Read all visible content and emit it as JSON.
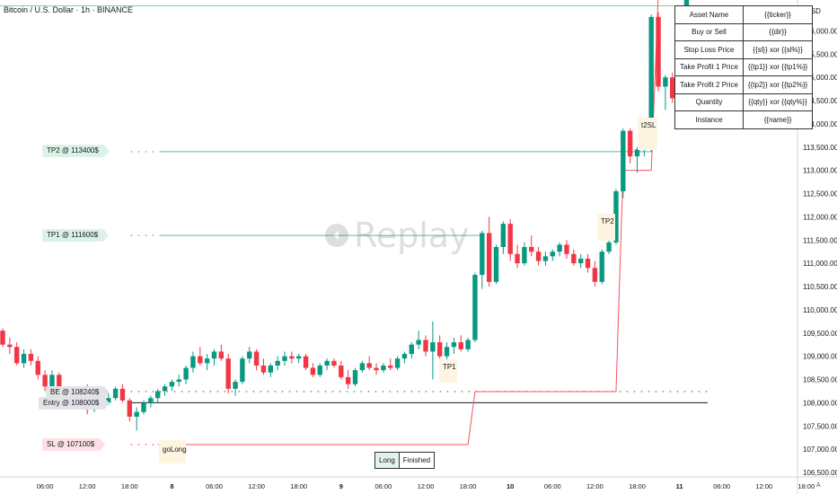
{
  "header": {
    "title": "Bitcoin / U.S. Dollar · 1h · BINANCE",
    "currency": "USD",
    "scale_mode": "A"
  },
  "watermark": {
    "text": "Replay",
    "icon": "replay-icon"
  },
  "labels": {
    "tp2": "TP2 @ 113400$",
    "tp1": "TP1 @ 111600$",
    "be": "BE @ 108240$",
    "entry": "Entry @ 108000$",
    "sl": "SL @ 107100$"
  },
  "markers": {
    "golong": "goLong",
    "tp1": "TP1",
    "tp2": "TP2",
    "tsl": "t2SL"
  },
  "info_table": [
    {
      "key": "Asset Name",
      "value": "{{ticker}}"
    },
    {
      "key": "Buy or Sell",
      "value": "{{dir}}"
    },
    {
      "key": "Stop Loss Price",
      "value": "{{sl}} xor {{sl%}}"
    },
    {
      "key": "Take Profit 1 Price",
      "value": "{{tp1}} xor {{tp1%}}"
    },
    {
      "key": "Take Profit 2 Price",
      "value": "{{tp2}} xor {{tp2%}}"
    },
    {
      "key": "Quantity",
      "value": "{{qty}} xor {{qty%}}"
    },
    {
      "key": "Instance",
      "value": "{{name}}"
    }
  ],
  "status": {
    "side": "Long",
    "state": "Finished"
  },
  "colors": {
    "up": "#089981",
    "down": "#f23645",
    "tp_line": "#4fc298",
    "sl_line": "#f7525f",
    "stop_trail": "#f7525f"
  },
  "chart_data": {
    "type": "candlestick",
    "title": "Bitcoin / U.S. Dollar · 1h · BINANCE",
    "ylim": [
      106500,
      116500
    ],
    "y_ticks": [
      "106,500.00",
      "107,000.00",
      "107,500.00",
      "108,000.00",
      "108,500.00",
      "109,000.00",
      "109,500.00",
      "110,000.00",
      "110,500.00",
      "111,000.00",
      "111,500.00",
      "112,000.00",
      "112,500.00",
      "113,000.00",
      "113,500.00",
      "114,000.00",
      "114,500.00",
      "115,000.00",
      "115,500.00",
      "116,000.00"
    ],
    "x_ticks": [
      {
        "t": 6,
        "label": "06:00",
        "bold": false
      },
      {
        "t": 12,
        "label": "12:00",
        "bold": false
      },
      {
        "t": 18,
        "label": "18:00",
        "bold": false
      },
      {
        "t": 24,
        "label": "8",
        "bold": true
      },
      {
        "t": 30,
        "label": "06:00",
        "bold": false
      },
      {
        "t": 36,
        "label": "12:00",
        "bold": false
      },
      {
        "t": 42,
        "label": "18:00",
        "bold": false
      },
      {
        "t": 48,
        "label": "9",
        "bold": true
      },
      {
        "t": 54,
        "label": "06:00",
        "bold": false
      },
      {
        "t": 60,
        "label": "12:00",
        "bold": false
      },
      {
        "t": 66,
        "label": "18:00",
        "bold": false
      },
      {
        "t": 72,
        "label": "10",
        "bold": true
      },
      {
        "t": 78,
        "label": "06:00",
        "bold": false
      },
      {
        "t": 84,
        "label": "12:00",
        "bold": false
      },
      {
        "t": 90,
        "label": "18:00",
        "bold": false
      },
      {
        "t": 96,
        "label": "11",
        "bold": true
      },
      {
        "t": 102,
        "label": "06:00",
        "bold": false
      },
      {
        "t": 108,
        "label": "12:00",
        "bold": false
      },
      {
        "t": 114,
        "label": "18:00",
        "bold": false
      }
    ],
    "candles": [
      [
        0,
        109550,
        109600,
        109200,
        109250
      ],
      [
        1,
        109250,
        109400,
        109050,
        109200
      ],
      [
        2,
        109200,
        109300,
        108800,
        108850
      ],
      [
        3,
        108850,
        109150,
        108750,
        109050
      ],
      [
        4,
        109050,
        109150,
        108800,
        108900
      ],
      [
        5,
        108900,
        109000,
        108500,
        108600
      ],
      [
        6,
        108600,
        108700,
        108250,
        108350
      ],
      [
        7,
        108350,
        108700,
        108250,
        108600
      ],
      [
        8,
        108600,
        108650,
        108100,
        108200
      ],
      [
        9,
        108200,
        108300,
        107950,
        108050
      ],
      [
        10,
        108050,
        108250,
        107900,
        108150
      ],
      [
        11,
        108150,
        108300,
        108000,
        108200
      ],
      [
        12,
        108200,
        108400,
        107750,
        107850
      ],
      [
        13,
        107850,
        108200,
        107800,
        108150
      ],
      [
        14,
        108150,
        108300,
        107900,
        108000
      ],
      [
        15,
        108000,
        108200,
        107950,
        108100
      ],
      [
        16,
        108100,
        108350,
        108050,
        108300
      ],
      [
        17,
        108300,
        108400,
        108000,
        108050
      ],
      [
        18,
        108050,
        108100,
        107600,
        107700
      ],
      [
        19,
        107700,
        107900,
        107400,
        107800
      ],
      [
        20,
        107800,
        108050,
        107750,
        108000
      ],
      [
        21,
        108000,
        108150,
        107900,
        108100
      ],
      [
        22,
        108100,
        108300,
        108000,
        108250
      ],
      [
        23,
        108250,
        108400,
        108150,
        108350
      ],
      [
        24,
        108350,
        108500,
        108250,
        108450
      ],
      [
        25,
        108450,
        108600,
        108350,
        108500
      ],
      [
        26,
        108500,
        108800,
        108400,
        108750
      ],
      [
        27,
        108750,
        109100,
        108650,
        109000
      ],
      [
        28,
        109000,
        109200,
        108800,
        108850
      ],
      [
        29,
        108850,
        109050,
        108700,
        108950
      ],
      [
        30,
        108950,
        109150,
        108800,
        109100
      ],
      [
        31,
        109100,
        109250,
        108900,
        108950
      ],
      [
        32,
        108950,
        109050,
        108200,
        108300
      ],
      [
        33,
        108300,
        108500,
        108150,
        108450
      ],
      [
        34,
        108450,
        109000,
        108400,
        108950
      ],
      [
        35,
        108950,
        109200,
        108850,
        109100
      ],
      [
        36,
        109100,
        109150,
        108700,
        108800
      ],
      [
        37,
        108800,
        108950,
        108600,
        108650
      ],
      [
        38,
        108650,
        108850,
        108550,
        108800
      ],
      [
        39,
        108800,
        109000,
        108700,
        108900
      ],
      [
        40,
        108900,
        109100,
        108800,
        109000
      ],
      [
        41,
        109000,
        109100,
        108850,
        108950
      ],
      [
        42,
        108950,
        109050,
        108850,
        109000
      ],
      [
        43,
        109000,
        109050,
        108700,
        108750
      ],
      [
        44,
        108750,
        108850,
        108550,
        108600
      ],
      [
        45,
        108600,
        108850,
        108550,
        108800
      ],
      [
        46,
        108800,
        108950,
        108700,
        108900
      ],
      [
        47,
        108900,
        108950,
        108750,
        108800
      ],
      [
        48,
        108800,
        108900,
        108500,
        108550
      ],
      [
        49,
        108550,
        108700,
        108300,
        108400
      ],
      [
        50,
        108400,
        108750,
        108350,
        108700
      ],
      [
        51,
        108700,
        108900,
        108650,
        108850
      ],
      [
        52,
        108850,
        109000,
        108700,
        108750
      ],
      [
        53,
        108750,
        108850,
        108600,
        108700
      ],
      [
        54,
        108700,
        108850,
        108650,
        108800
      ],
      [
        55,
        108800,
        108950,
        108700,
        108750
      ],
      [
        56,
        108750,
        109000,
        108700,
        108950
      ],
      [
        57,
        108950,
        109100,
        108850,
        109050
      ],
      [
        58,
        109050,
        109300,
        108950,
        109250
      ],
      [
        59,
        109250,
        109550,
        109150,
        109350
      ],
      [
        60,
        109350,
        109450,
        109000,
        109100
      ],
      [
        61,
        109100,
        109750,
        108500,
        109300
      ],
      [
        62,
        109300,
        109450,
        108950,
        109000
      ],
      [
        63,
        109000,
        109300,
        108900,
        109200
      ],
      [
        64,
        109200,
        109400,
        109050,
        109300
      ],
      [
        65,
        109300,
        109450,
        109100,
        109150
      ],
      [
        66,
        109150,
        109400,
        109100,
        109350
      ],
      [
        67,
        109350,
        110800,
        109300,
        110750
      ],
      [
        68,
        110750,
        111700,
        110450,
        111650
      ],
      [
        69,
        111650,
        112000,
        110500,
        110600
      ],
      [
        70,
        110600,
        111400,
        110550,
        111350
      ],
      [
        71,
        111350,
        111900,
        111200,
        111850
      ],
      [
        72,
        111850,
        111950,
        111050,
        111200
      ],
      [
        73,
        111200,
        111400,
        110900,
        111000
      ],
      [
        74,
        111000,
        111450,
        110950,
        111350
      ],
      [
        75,
        111350,
        111600,
        111150,
        111250
      ],
      [
        76,
        111250,
        111350,
        110950,
        111050
      ],
      [
        77,
        111050,
        111250,
        110950,
        111150
      ],
      [
        78,
        111150,
        111300,
        111050,
        111250
      ],
      [
        79,
        111250,
        111450,
        111150,
        111400
      ],
      [
        80,
        111400,
        111500,
        111100,
        111200
      ],
      [
        81,
        111200,
        111300,
        110950,
        111000
      ],
      [
        82,
        111000,
        111200,
        110900,
        111100
      ],
      [
        83,
        111100,
        111200,
        110800,
        110900
      ],
      [
        84,
        110900,
        111050,
        110500,
        110600
      ],
      [
        85,
        110600,
        111300,
        110550,
        111250
      ],
      [
        86,
        111250,
        111550,
        111200,
        111450
      ],
      [
        87,
        111450,
        112600,
        111400,
        112550
      ],
      [
        88,
        112550,
        113900,
        112400,
        113850
      ],
      [
        89,
        113850,
        113900,
        113150,
        113300
      ],
      [
        90,
        113300,
        113500,
        112950,
        113450
      ],
      [
        91,
        113450,
        113650,
        113300,
        113550
      ],
      [
        92,
        113550,
        116350,
        113400,
        116300
      ],
      [
        93,
        116300,
        116400,
        114700,
        114800
      ],
      [
        94,
        114800,
        115050,
        114300,
        115000
      ],
      [
        95,
        115000,
        115100,
        114450,
        114550
      ],
      [
        96,
        114550,
        115400,
        114500,
        115350
      ],
      [
        97,
        115350,
        116900,
        115300,
        116800
      ]
    ],
    "levels": {
      "tp2": {
        "price": 113400,
        "from": 22,
        "to": 92
      },
      "tp1": {
        "price": 111600,
        "from": 22,
        "to": 68
      },
      "be": {
        "price": 108240,
        "from": 22,
        "to": 100
      },
      "entry": {
        "price": 108000,
        "from": 22,
        "to": 100
      },
      "sl": {
        "price": 107100,
        "from": 22,
        "to": 66
      }
    },
    "stop_trail": [
      [
        22,
        107100
      ],
      [
        66,
        107100
      ],
      [
        67,
        108240
      ],
      [
        87,
        108240
      ],
      [
        88,
        113000
      ],
      [
        92,
        113000
      ],
      [
        93,
        116800
      ]
    ]
  }
}
